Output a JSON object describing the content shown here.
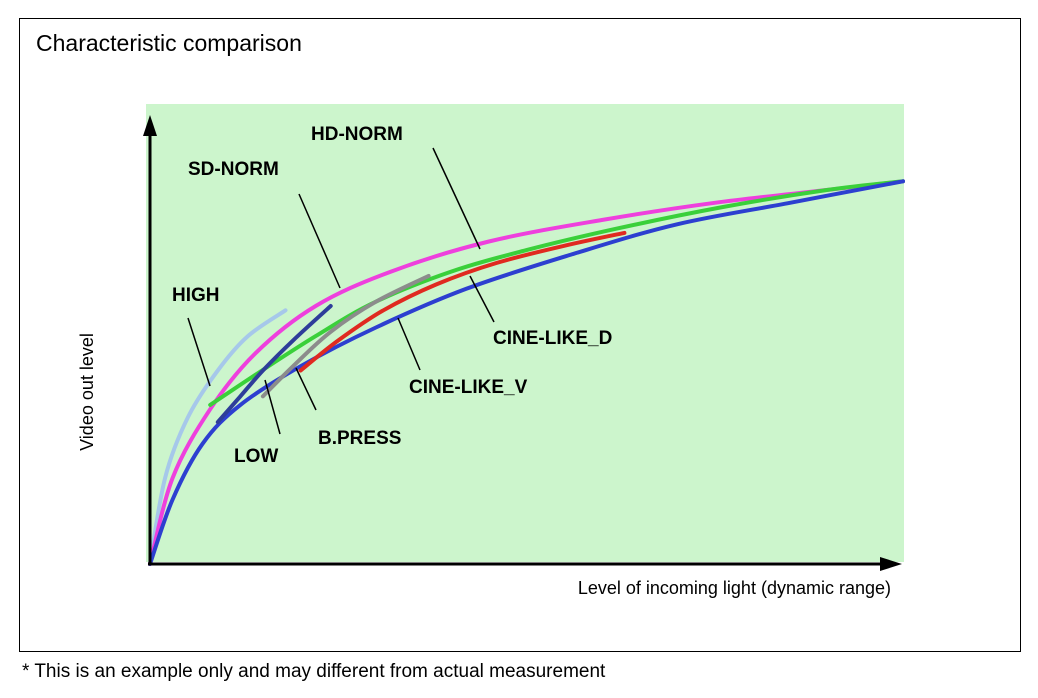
{
  "title": "Characteristic comparison",
  "footnote": "* This is an example only and may different from actual measurement",
  "chart_data": {
    "type": "line",
    "xlabel": "Level of incoming light (dynamic range)",
    "ylabel": "Video out level",
    "plot_background": "#ccf5cc",
    "axis_ticks": false,
    "grid": false,
    "series": [
      {
        "name": "HIGH",
        "color": "#a6c8ea",
        "points": [
          [
            0,
            0
          ],
          [
            0.02,
            0.2
          ],
          [
            0.05,
            0.34
          ],
          [
            0.09,
            0.45
          ],
          [
            0.13,
            0.53
          ],
          [
            0.18,
            0.59
          ]
        ]
      },
      {
        "name": "SD-NORM",
        "color": "#ee40dd",
        "points": [
          [
            0,
            0
          ],
          [
            0.03,
            0.2
          ],
          [
            0.08,
            0.36
          ],
          [
            0.14,
            0.49
          ],
          [
            0.22,
            0.6
          ],
          [
            0.32,
            0.68
          ],
          [
            0.45,
            0.75
          ],
          [
            0.6,
            0.8
          ],
          [
            0.75,
            0.84
          ],
          [
            0.9,
            0.87
          ],
          [
            1.0,
            0.89
          ]
        ]
      },
      {
        "name": "HD-NORM",
        "color": "#3ad03a",
        "points": [
          [
            0.08,
            0.37
          ],
          [
            0.14,
            0.44
          ],
          [
            0.22,
            0.53
          ],
          [
            0.3,
            0.61
          ],
          [
            0.4,
            0.68
          ],
          [
            0.5,
            0.73
          ],
          [
            0.62,
            0.78
          ],
          [
            0.76,
            0.83
          ],
          [
            0.9,
            0.87
          ],
          [
            1.0,
            0.89
          ]
        ]
      },
      {
        "name": "CINE-LIKE_D",
        "color": "#2d3fd0",
        "points": [
          [
            0,
            0
          ],
          [
            0.03,
            0.15
          ],
          [
            0.07,
            0.28
          ],
          [
            0.12,
            0.37
          ],
          [
            0.2,
            0.46
          ],
          [
            0.3,
            0.55
          ],
          [
            0.42,
            0.64
          ],
          [
            0.56,
            0.72
          ],
          [
            0.7,
            0.79
          ],
          [
            0.85,
            0.84
          ],
          [
            1.0,
            0.89
          ]
        ]
      },
      {
        "name": "CINE-LIKE_V",
        "color": "#e02a20",
        "points": [
          [
            0.2,
            0.45
          ],
          [
            0.25,
            0.52
          ],
          [
            0.31,
            0.59
          ],
          [
            0.38,
            0.65
          ],
          [
            0.46,
            0.7
          ],
          [
            0.55,
            0.74
          ],
          [
            0.63,
            0.77
          ]
        ]
      },
      {
        "name": "B.PRESS",
        "color": "#8c8c8c",
        "points": [
          [
            0.15,
            0.39
          ],
          [
            0.19,
            0.46
          ],
          [
            0.24,
            0.54
          ],
          [
            0.3,
            0.61
          ],
          [
            0.37,
            0.67
          ]
        ]
      },
      {
        "name": "LOW",
        "color": "#2e3d9a",
        "points": [
          [
            0.09,
            0.33
          ],
          [
            0.12,
            0.39
          ],
          [
            0.15,
            0.45
          ],
          [
            0.19,
            0.52
          ],
          [
            0.24,
            0.6
          ]
        ]
      }
    ],
    "annotations": [
      {
        "text": "HIGH",
        "series": "HIGH"
      },
      {
        "text": "SD-NORM",
        "series": "SD-NORM"
      },
      {
        "text": "HD-NORM",
        "series": "HD-NORM"
      },
      {
        "text": "CINE-LIKE_D",
        "series": "CINE-LIKE_D"
      },
      {
        "text": "CINE-LIKE_V",
        "series": "CINE-LIKE_V"
      },
      {
        "text": "B.PRESS",
        "series": "B.PRESS"
      },
      {
        "text": "LOW",
        "series": "LOW"
      }
    ]
  }
}
